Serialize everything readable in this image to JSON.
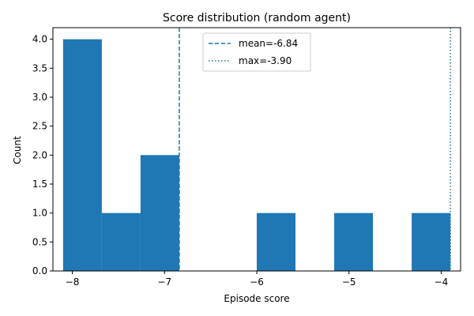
{
  "chart_data": {
    "type": "bar",
    "title": "Score distribution (random agent)",
    "xlabel": "Episode score",
    "ylabel": "Count",
    "xlim": [
      -8.21,
      -3.79
    ],
    "ylim": [
      0,
      4.2
    ],
    "xticks": [
      -8,
      -7,
      -6,
      -5,
      -4
    ],
    "xtick_labels": [
      "−8",
      "−7",
      "−6",
      "−5",
      "−4"
    ],
    "yticks": [
      0.0,
      0.5,
      1.0,
      1.5,
      2.0,
      2.5,
      3.0,
      3.5,
      4.0
    ],
    "ytick_labels": [
      "0.0",
      "0.5",
      "1.0",
      "1.5",
      "2.0",
      "2.5",
      "3.0",
      "3.5",
      "4.0"
    ],
    "grid": false,
    "bar_color": "#1f77b4",
    "bins": [
      {
        "x0": -8.1,
        "x1": -7.68,
        "count": 4
      },
      {
        "x0": -7.68,
        "x1": -7.26,
        "count": 1
      },
      {
        "x0": -7.26,
        "x1": -6.84,
        "count": 2
      },
      {
        "x0": -6.84,
        "x1": -6.42,
        "count": 0
      },
      {
        "x0": -6.42,
        "x1": -6.0,
        "count": 0
      },
      {
        "x0": -6.0,
        "x1": -5.58,
        "count": 1
      },
      {
        "x0": -5.58,
        "x1": -5.16,
        "count": 0
      },
      {
        "x0": -5.16,
        "x1": -4.74,
        "count": 1
      },
      {
        "x0": -4.74,
        "x1": -4.32,
        "count": 0
      },
      {
        "x0": -4.32,
        "x1": -3.9,
        "count": 1
      }
    ],
    "reference_lines": [
      {
        "label": "mean=-6.84",
        "x": -6.84,
        "style": "dashed",
        "color": "#1f77b4"
      },
      {
        "label": "max=-3.90",
        "x": -3.9,
        "style": "dotted",
        "color": "#1f77b4"
      }
    ],
    "legend_position": "upper-center"
  }
}
